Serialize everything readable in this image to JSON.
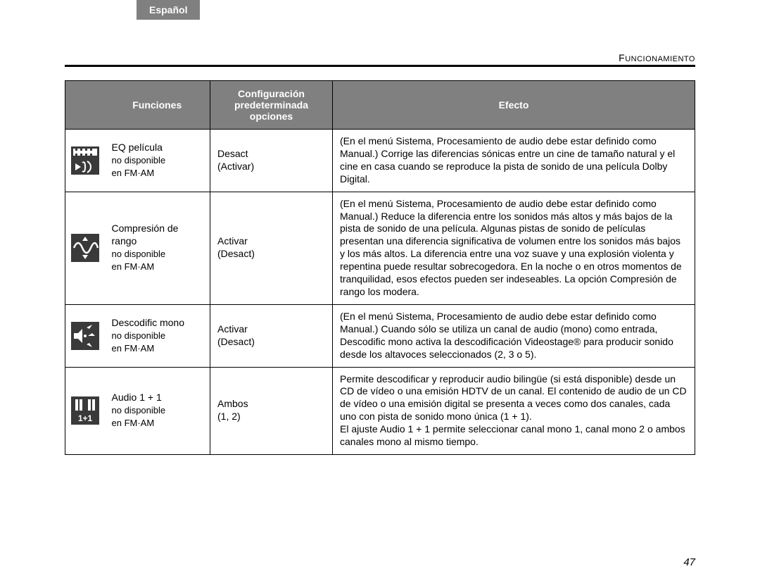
{
  "lang_tab": "Español",
  "section_label": "Funcionamiento",
  "page_number": "47",
  "headers": {
    "funciones": "Funciones",
    "config_l1": "Configuración",
    "config_l2": "predeterminada",
    "config_l3": "opciones",
    "efecto": "Efecto"
  },
  "rows": [
    {
      "func_main": "EQ película",
      "func_note1": "no disponible",
      "func_note2": "en FM·AM",
      "conf_main": "Desact",
      "conf_opt": "(Activar)",
      "effect": "(En el menú Sistema, Procesamiento de audio debe estar definido como Manual.) Corrige las diferencias sónicas entre un cine de tamaño natural y el cine en casa cuando se reproduce la pista de sonido de una película Dolby Digital."
    },
    {
      "func_main": "Compresión de rango",
      "func_note1": "no disponible",
      "func_note2": "en FM·AM",
      "conf_main": "Activar",
      "conf_opt": "(Desact)",
      "effect": "(En el menú Sistema, Procesamiento de audio debe estar definido como Manual.) Reduce la diferencia entre los sonidos más altos y más bajos de la pista de sonido de una película. Algunas pistas de sonido de películas presentan una diferencia significativa de volumen entre los sonidos más bajos y los más altos. La diferencia entre una voz suave y una explosión violenta y repentina puede resultar sobrecogedora. En la noche o en otros momentos de tranquilidad, esos efectos pueden ser indeseables. La opción Compresión de rango los modera."
    },
    {
      "func_main": "Descodific mono",
      "func_note1": "no disponible",
      "func_note2": "en FM·AM",
      "conf_main": "Activar",
      "conf_opt": "(Desact)",
      "effect": "(En el menú Sistema, Procesamiento de audio debe estar definido como Manual.) Cuando sólo se utiliza un canal de audio (mono) como entrada, Descodific mono activa la descodificación Videostage® para producir sonido desde los altavoces seleccionados (2, 3 o 5)."
    },
    {
      "func_main": "Audio 1 + 1",
      "func_note1": "no disponible",
      "func_note2": "en FM·AM",
      "conf_main": "Ambos",
      "conf_opt": "(1, 2)",
      "effect": "Permite descodificar y reproducir audio bilingüe (si está disponible) desde un CD de vídeo o una emisión HDTV de un canal. El contenido de audio de un CD de vídeo o una emisión digital se presenta a veces como dos canales, cada uno con pista de sonido mono única (1 + 1).\nEl ajuste Audio 1 + 1 permite seleccionar canal mono 1, canal mono 2 o ambos canales mono al mismo tiempo."
    }
  ]
}
